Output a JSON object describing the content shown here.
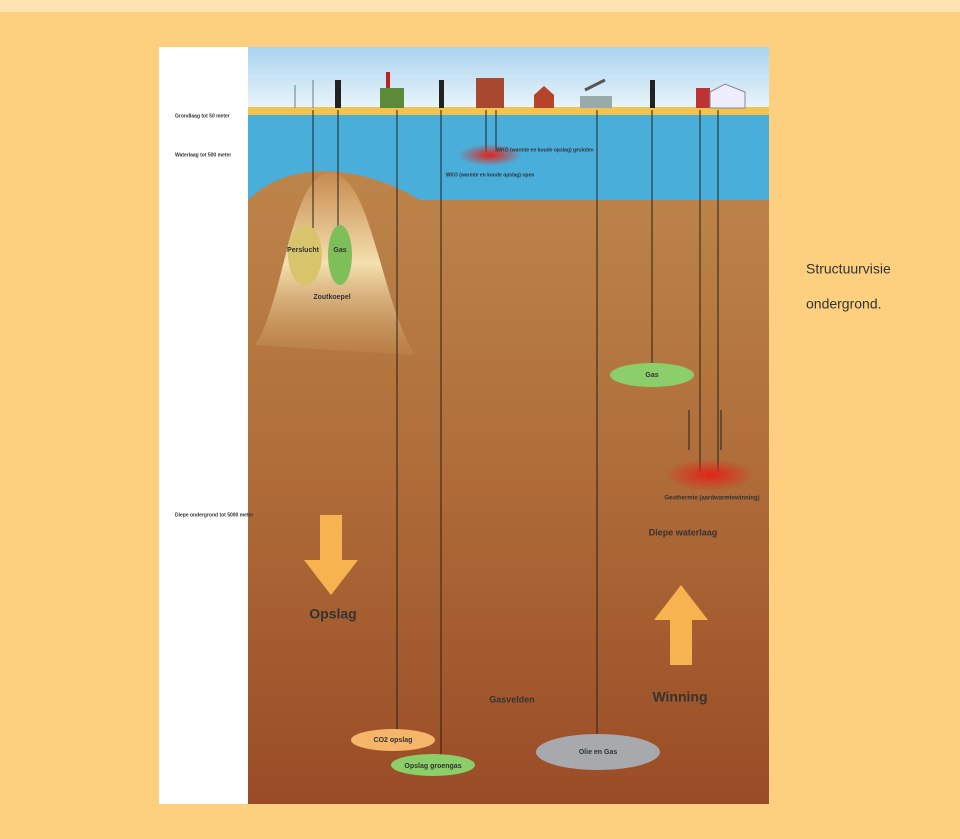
{
  "layers": [
    "Grondlaag tot 50 meter",
    "Waterlaag tot 500 meter",
    "Diepe ondergrond tot 5000 meter"
  ],
  "labels": {
    "perslucht": "Perslucht",
    "gas_koepel": "Gas",
    "zoutkoepel": "Zoutkoepel",
    "wko_open": "WKO (warmte en koude opslag) open",
    "wko_gesloten": "WKO (warmte en koude opslag) gesloten",
    "gas": "Gas",
    "geothermie": "Geothermie (aardwarmtewinning)",
    "diepe_waterlaag": "Diepe waterlaag",
    "opslag": "Opslag",
    "winning": "Winning",
    "gasvelden": "Gasvelden",
    "co2": "CO2 opslag",
    "opslag_gas": "Opslag groengas",
    "olie_gas": "Olie en Gas"
  },
  "caption": [
    "Structuurvisie",
    "ondergrond."
  ]
}
